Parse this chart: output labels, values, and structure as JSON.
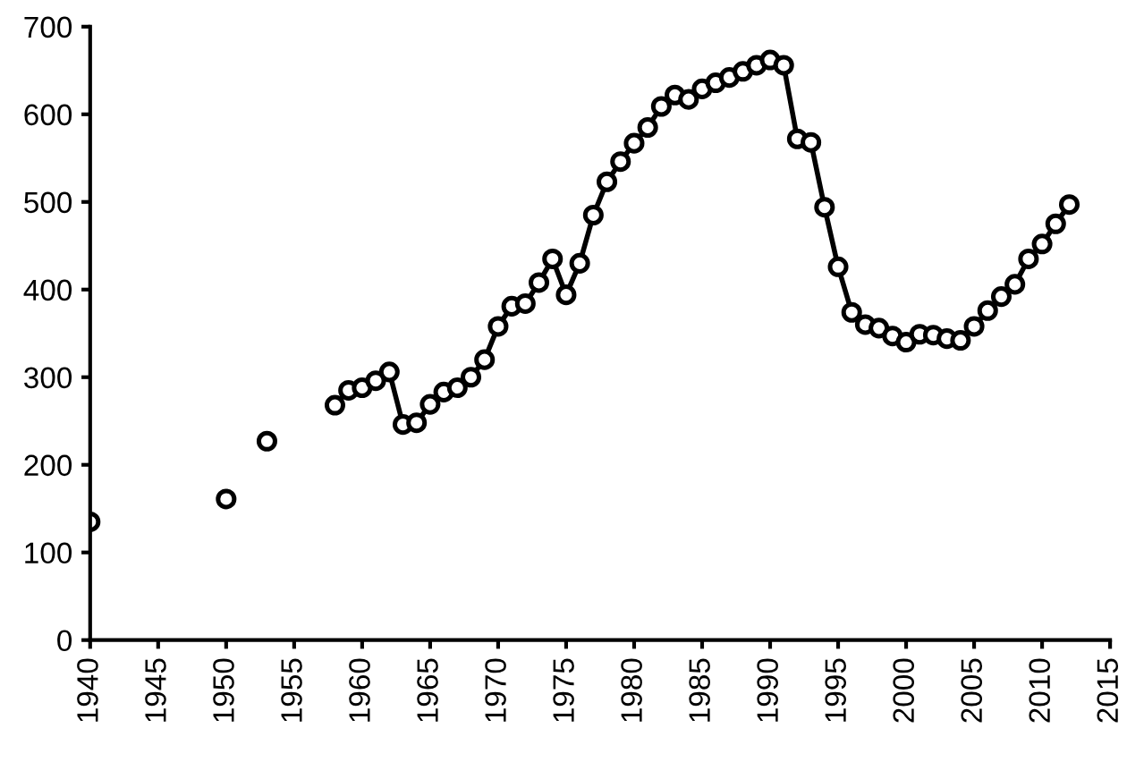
{
  "chart_data": {
    "type": "line",
    "x": [
      1940,
      1941,
      1942,
      1943,
      1944,
      1945,
      1946,
      1947,
      1948,
      1949,
      1950,
      1951,
      1952,
      1953,
      1954,
      1955,
      1956,
      1957,
      1958,
      1959,
      1960,
      1961,
      1962,
      1963,
      1964,
      1965,
      1966,
      1967,
      1968,
      1969,
      1970,
      1971,
      1972,
      1973,
      1974,
      1975,
      1976,
      1977,
      1978,
      1979,
      1980,
      1981,
      1982,
      1983,
      1984,
      1985,
      1986,
      1987,
      1988,
      1989,
      1990,
      1991,
      1992,
      1993,
      1994,
      1995,
      1996,
      1997,
      1998,
      1999,
      2000,
      2001,
      2002,
      2003,
      2004,
      2005,
      2006,
      2007,
      2008,
      2009,
      2010,
      2011,
      2012
    ],
    "series": [
      {
        "color": "#000000",
        "values": [
          135,
          null,
          null,
          null,
          null,
          null,
          null,
          null,
          null,
          null,
          161,
          null,
          null,
          227,
          null,
          null,
          null,
          null,
          268,
          285,
          288,
          296,
          306,
          246,
          248,
          269,
          283,
          288,
          300,
          320,
          358,
          381,
          384,
          408,
          435,
          394,
          430,
          485,
          523,
          546,
          567,
          585,
          609,
          622,
          617,
          629,
          636,
          642,
          649,
          656,
          662,
          656,
          572,
          568,
          494,
          426,
          374,
          360,
          356,
          347,
          340,
          349,
          348,
          344,
          342,
          358,
          376,
          392,
          406,
          435,
          452,
          475,
          497
        ]
      }
    ],
    "xlim": [
      1940,
      2015
    ],
    "xticks": [
      1940,
      1945,
      1950,
      1955,
      1960,
      1965,
      1970,
      1975,
      1980,
      1985,
      1990,
      1995,
      2000,
      2005,
      2010,
      2015
    ],
    "ylim": [
      0,
      700
    ],
    "yticks": [
      0,
      100,
      200,
      300,
      400,
      500,
      600,
      700
    ],
    "marker": "circle",
    "line_style": "solid",
    "grid": false,
    "legend": false
  }
}
